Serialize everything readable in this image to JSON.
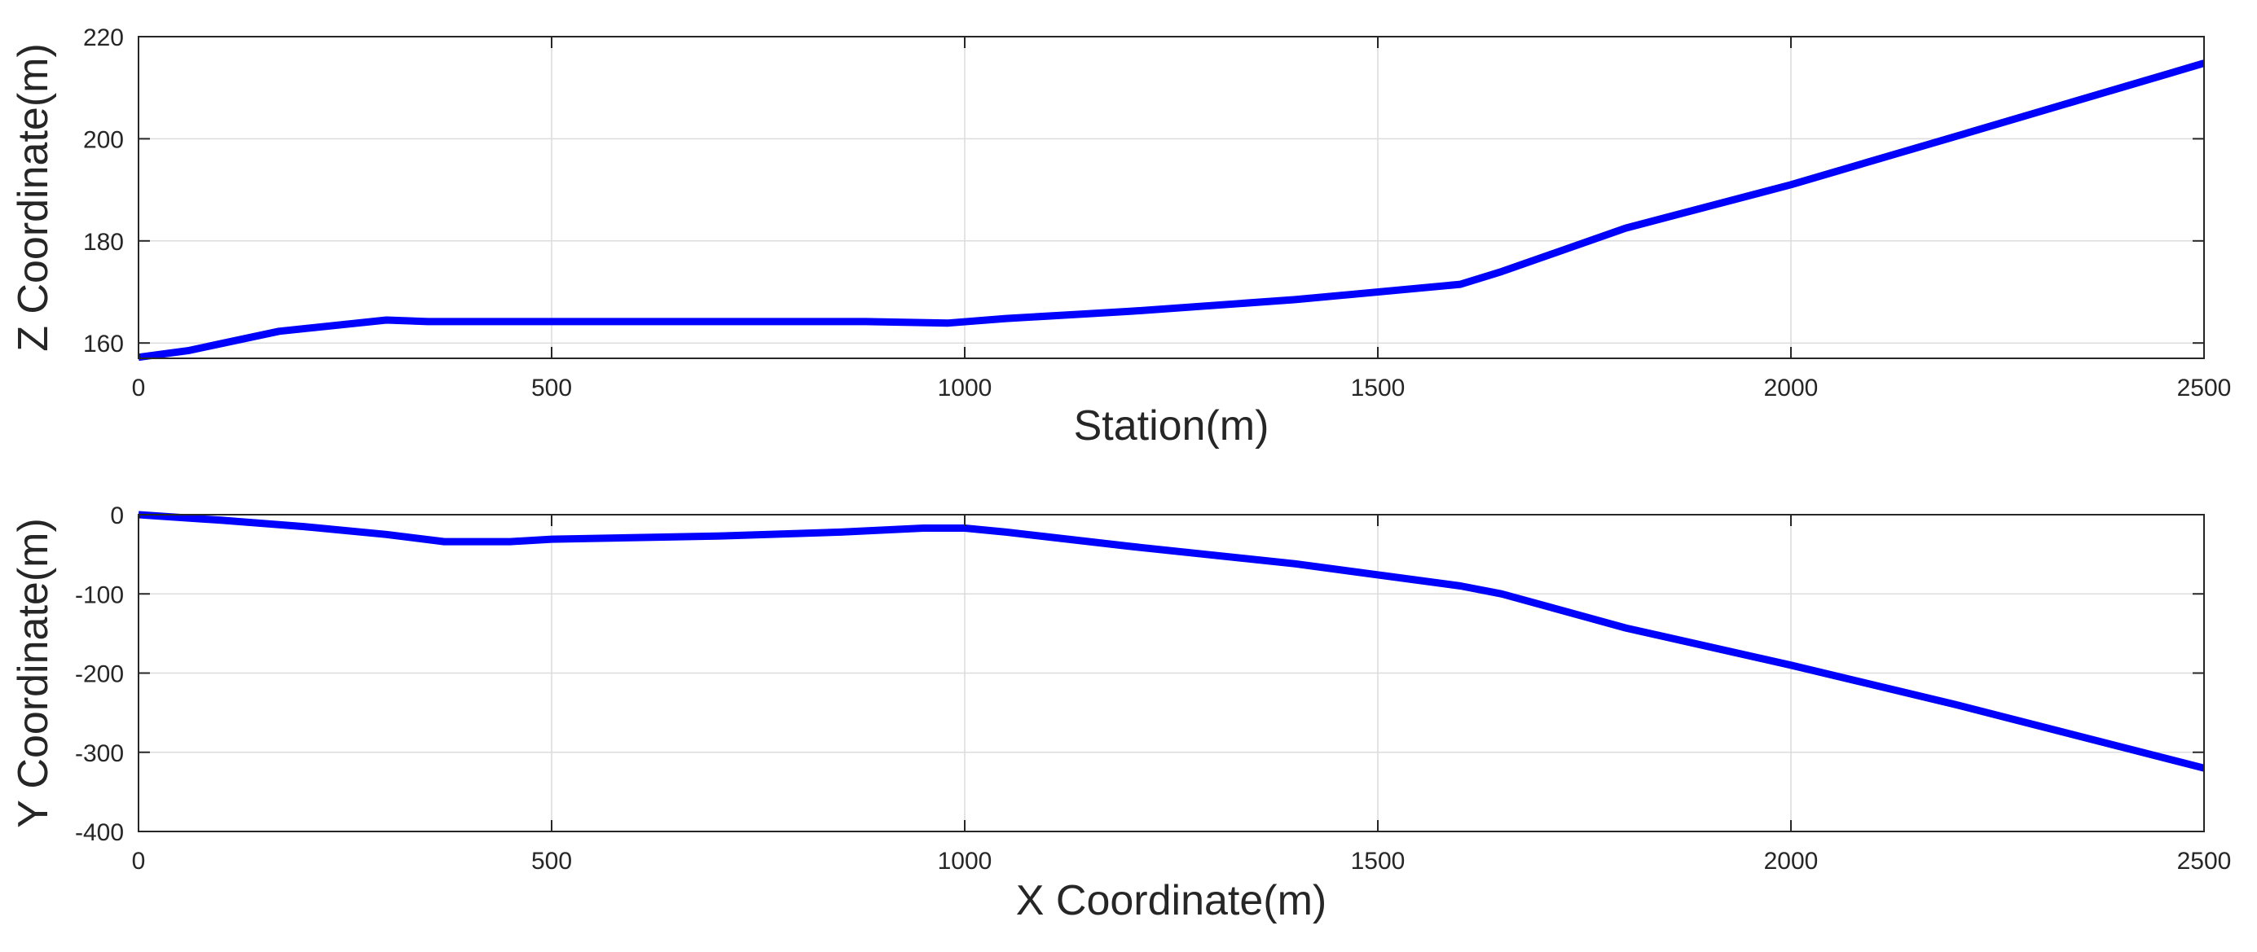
{
  "chart_data": [
    {
      "type": "line",
      "title": "",
      "xlabel": "Station(m)",
      "ylabel": "Z Coordinate(m)",
      "xlim": [
        0,
        2500
      ],
      "ylim": [
        157,
        220
      ],
      "xticks": [
        0,
        500,
        1000,
        1500,
        2000,
        2500
      ],
      "yticks": [
        160,
        180,
        200,
        220
      ],
      "grid": true,
      "series": [
        {
          "color": "#0000ff",
          "x": [
            0,
            60,
            170,
            300,
            350,
            880,
            980,
            1050,
            1200,
            1400,
            1600,
            1650,
            1800,
            2000,
            2200,
            2500
          ],
          "y": [
            157.2,
            158.5,
            162.3,
            164.5,
            164.2,
            164.2,
            163.9,
            164.8,
            166.2,
            168.5,
            171.5,
            174.0,
            182.5,
            191.0,
            200.5,
            214.8
          ]
        }
      ]
    },
    {
      "type": "line",
      "title": "",
      "xlabel": "X Coordinate(m)",
      "ylabel": "Y Coordinate(m)",
      "xlim": [
        0,
        2500
      ],
      "ylim": [
        -400,
        0
      ],
      "xticks": [
        0,
        500,
        1000,
        1500,
        2000,
        2500
      ],
      "yticks": [
        0,
        -100,
        -200,
        -300,
        -400
      ],
      "grid": true,
      "series": [
        {
          "color": "#0000ff",
          "x": [
            0,
            100,
            200,
            300,
            370,
            450,
            500,
            700,
            850,
            950,
            1000,
            1050,
            1200,
            1400,
            1600,
            1650,
            1800,
            2000,
            2200,
            2500
          ],
          "y": [
            0,
            -7,
            -15,
            -25,
            -34,
            -34,
            -31,
            -27,
            -22,
            -17,
            -17,
            -22,
            -40,
            -62,
            -90,
            -100,
            -143,
            -190,
            -240,
            -320
          ]
        }
      ]
    }
  ]
}
